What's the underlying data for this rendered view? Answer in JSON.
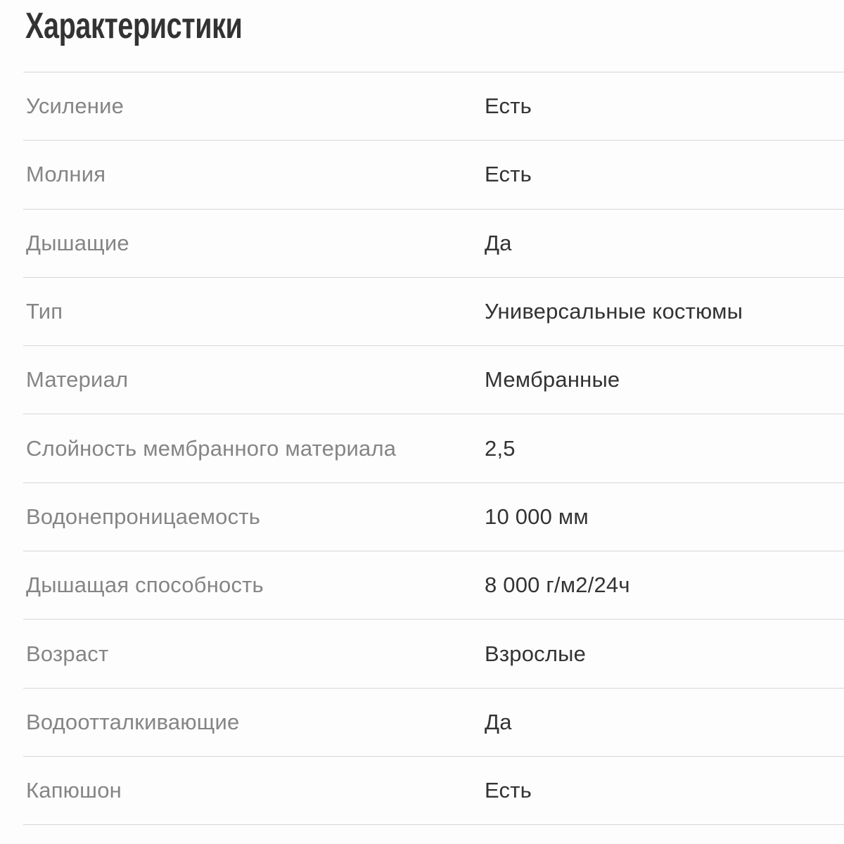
{
  "section": {
    "title": "Характеристики"
  },
  "specs": {
    "rows": [
      {
        "label": "Усиление",
        "value": "Есть"
      },
      {
        "label": "Молния",
        "value": "Есть"
      },
      {
        "label": "Дышащие",
        "value": "Да"
      },
      {
        "label": "Тип",
        "value": "Универсальные костюмы"
      },
      {
        "label": "Материал",
        "value": "Мембранные"
      },
      {
        "label": "Слойность мембранного материала",
        "value": "2,5"
      },
      {
        "label": "Водонепроницаемость",
        "value": "10 000 мм"
      },
      {
        "label": "Дышащая способность",
        "value": "8 000 г/м2/24ч"
      },
      {
        "label": "Возраст",
        "value": "Взрослые"
      },
      {
        "label": "Водоотталкивающие",
        "value": "Да"
      },
      {
        "label": "Капюшон",
        "value": "Есть"
      }
    ]
  },
  "colors": {
    "background": "#fdfdfd",
    "title_text": "#333333",
    "label_text": "#858585",
    "value_text": "#333333",
    "divider": "#d7d7d7"
  }
}
